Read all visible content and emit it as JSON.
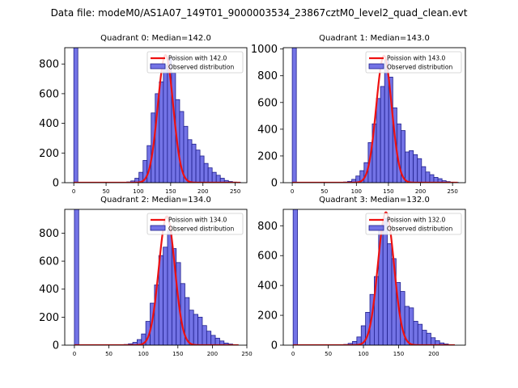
{
  "suptitle": "Data file: modeM0/AS1A07_149T01_9000003534_23867cztM0_level2_quad_clean.evt",
  "colors": {
    "bar_fill": "#7373e6",
    "bar_edge": "#1f1f8c",
    "poisson": "#ee1111",
    "axis": "#000000"
  },
  "chart_data": [
    {
      "type": "bar",
      "title": "Quadrant 0: Median=142.0",
      "legend": {
        "line": "Poission with 142.0",
        "bars": "Observed distribution",
        "loc": "upper right"
      },
      "xlim": [
        -14,
        268
      ],
      "ylim": [
        0,
        910
      ],
      "xticks": [
        0,
        50,
        100,
        150,
        200,
        250
      ],
      "yticks": [
        0,
        200,
        400,
        600,
        800
      ],
      "bin_width": 6.3,
      "bins_x": [
        0,
        82.0,
        88.3,
        94.6,
        100.9,
        107.2,
        113.5,
        119.8,
        126.1,
        132.4,
        138.7,
        145.0,
        151.3,
        157.6,
        163.9,
        170.2,
        176.5,
        182.8,
        189.1,
        195.4,
        201.7,
        208.0,
        214.3,
        220.6,
        226.9,
        233.2,
        239.5,
        245.8,
        252.1
      ],
      "counts": [
        910,
        5,
        12,
        30,
        70,
        150,
        250,
        470,
        600,
        680,
        790,
        840,
        740,
        560,
        480,
        380,
        290,
        260,
        220,
        180,
        130,
        100,
        70,
        50,
        30,
        15,
        8,
        4,
        2
      ],
      "poisson": {
        "mean": 142.0,
        "amplitude": 860,
        "x_range": [
          0,
          258
        ]
      }
    },
    {
      "type": "bar",
      "title": "Quadrant 1: Median=143.0",
      "legend": {
        "line": "Poission with 143.0",
        "bars": "Observed distribution",
        "loc": "upper right"
      },
      "xlim": [
        -14,
        270
      ],
      "ylim": [
        0,
        1010
      ],
      "xticks": [
        0,
        50,
        100,
        150,
        200,
        250
      ],
      "yticks": [
        0,
        200,
        400,
        600,
        800,
        1000
      ],
      "bin_width": 6.4,
      "bins_x": [
        0,
        80.0,
        86.4,
        92.8,
        99.2,
        105.6,
        112.0,
        118.4,
        124.8,
        131.2,
        137.6,
        144.0,
        150.4,
        156.8,
        163.2,
        169.6,
        176.0,
        182.4,
        188.8,
        195.2,
        201.6,
        208.0,
        214.4,
        220.8,
        227.2,
        233.6,
        240.0,
        246.4,
        252.8
      ],
      "counts": [
        1010,
        5,
        10,
        25,
        50,
        90,
        150,
        300,
        440,
        630,
        720,
        920,
        790,
        560,
        440,
        390,
        230,
        240,
        210,
        180,
        120,
        80,
        60,
        40,
        30,
        15,
        8,
        4,
        2
      ],
      "poisson": {
        "mean": 143.0,
        "amplitude": 950,
        "x_range": [
          0,
          258
        ]
      }
    },
    {
      "type": "bar",
      "title": "Quadrant 2: Median=134.0",
      "legend": {
        "line": "Poission with 134.0",
        "bars": "Observed distribution",
        "loc": "upper right"
      },
      "xlim": [
        -14,
        250
      ],
      "ylim": [
        0,
        970
      ],
      "xticks": [
        0,
        50,
        100,
        150,
        200,
        250
      ],
      "yticks": [
        0,
        200,
        400,
        600,
        800
      ],
      "bin_width": 6.3,
      "bins_x": [
        0,
        72.0,
        78.3,
        84.6,
        90.9,
        97.2,
        103.5,
        109.8,
        116.1,
        122.4,
        128.7,
        135.0,
        141.3,
        147.6,
        153.9,
        160.2,
        166.5,
        172.8,
        179.1,
        185.4,
        191.7,
        198.0,
        204.3,
        210.6,
        216.9,
        223.2,
        229.5
      ],
      "counts": [
        970,
        5,
        10,
        20,
        40,
        80,
        170,
        300,
        430,
        640,
        700,
        820,
        690,
        590,
        440,
        340,
        250,
        220,
        200,
        140,
        100,
        70,
        50,
        30,
        15,
        8,
        3
      ],
      "poisson": {
        "mean": 134.0,
        "amplitude": 920,
        "x_range": [
          0,
          238
        ]
      }
    },
    {
      "type": "bar",
      "title": "Quadrant 3: Median=132.0",
      "legend": {
        "line": "Poission with 132.0",
        "bars": "Observed distribution",
        "loc": "upper right"
      },
      "xlim": [
        -14,
        245
      ],
      "ylim": [
        0,
        910
      ],
      "xticks": [
        0,
        50,
        100,
        150,
        200
      ],
      "yticks": [
        0,
        200,
        400,
        600,
        800
      ],
      "bin_width": 6.2,
      "bins_x": [
        0,
        72.0,
        78.2,
        84.4,
        90.6,
        96.8,
        103.0,
        109.2,
        115.4,
        121.6,
        127.8,
        134.0,
        140.2,
        146.4,
        152.6,
        158.8,
        165.0,
        171.2,
        177.4,
        183.6,
        189.8,
        196.0,
        202.2,
        208.4,
        214.6,
        220.8
      ],
      "counts": [
        910,
        5,
        12,
        25,
        55,
        130,
        220,
        340,
        460,
        790,
        850,
        680,
        580,
        420,
        360,
        260,
        250,
        160,
        140,
        100,
        80,
        50,
        30,
        15,
        8,
        3
      ],
      "poisson": {
        "mean": 132.0,
        "amplitude": 890,
        "x_range": [
          0,
          230
        ]
      }
    }
  ]
}
